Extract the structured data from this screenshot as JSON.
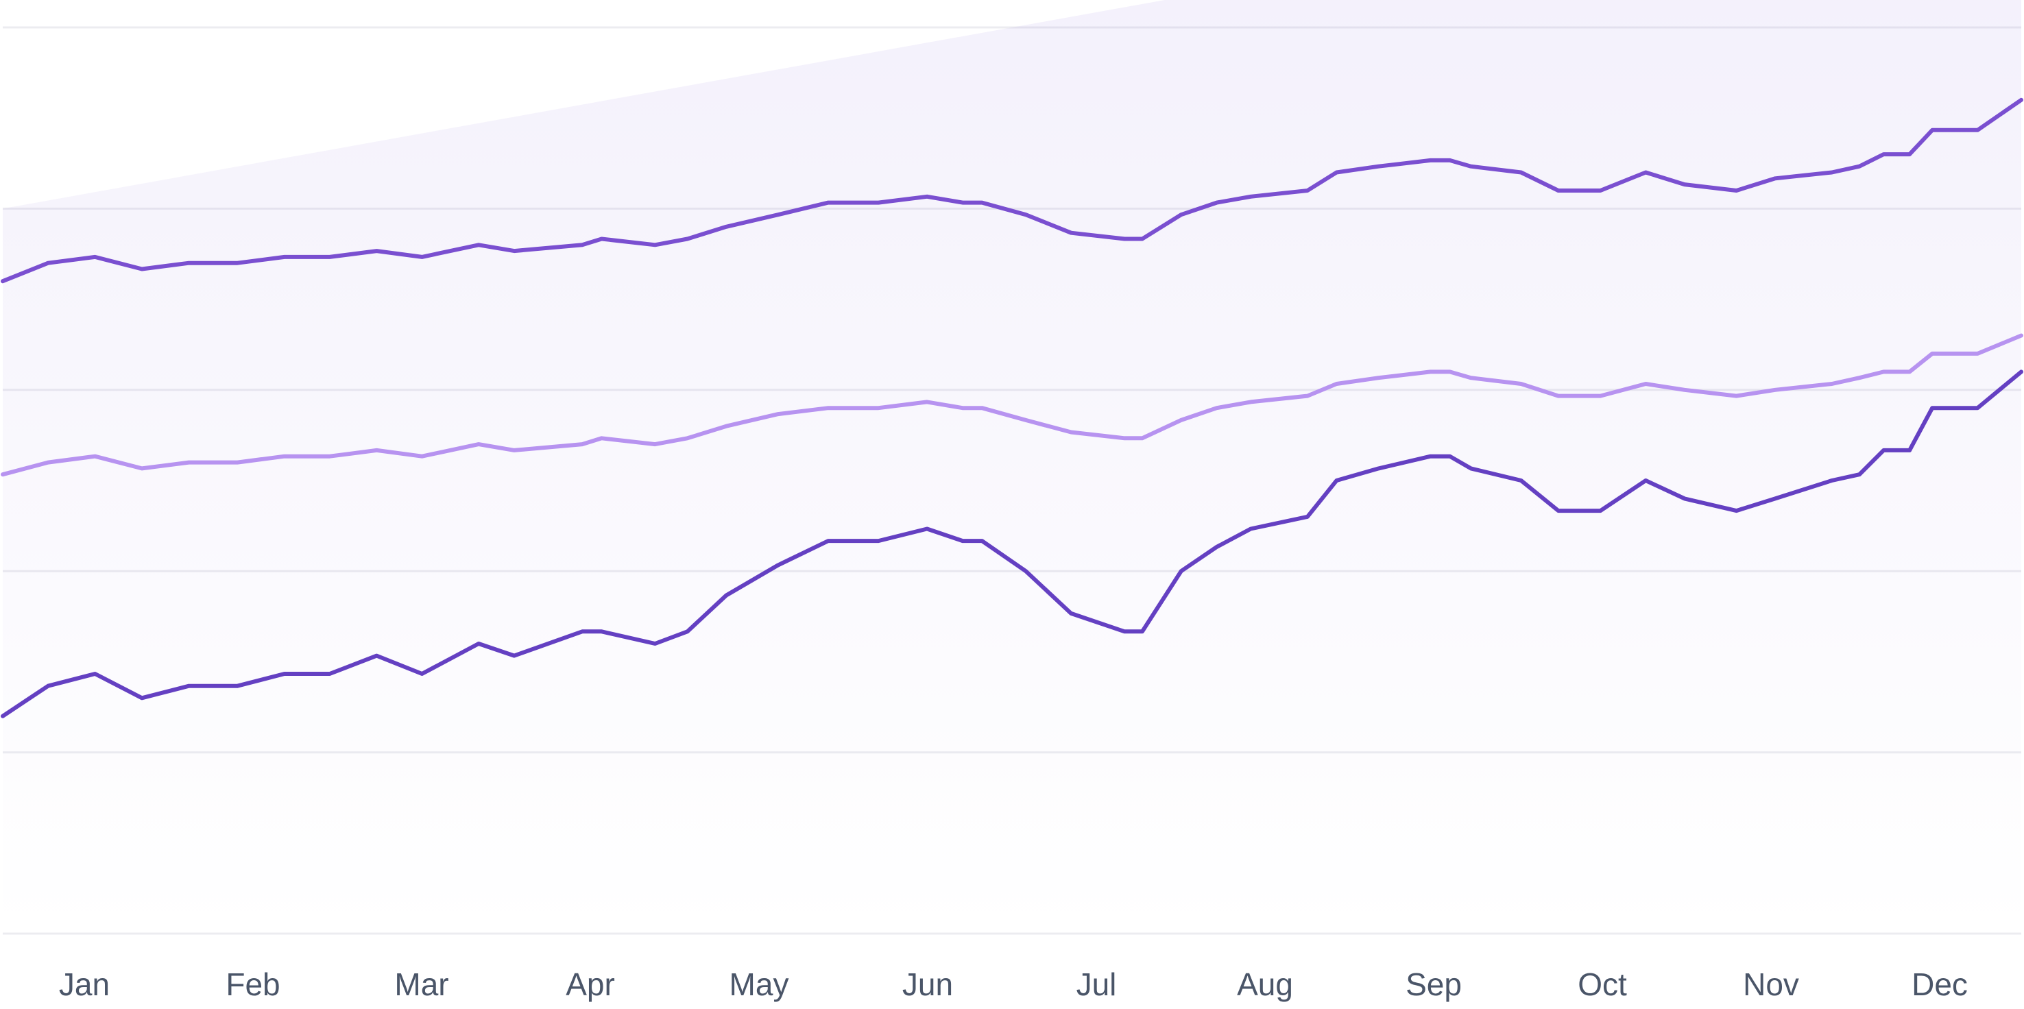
{
  "chart_data": {
    "type": "line",
    "title": "",
    "xlabel": "",
    "ylabel": "",
    "x_tick_labels": [
      "Jan",
      "Feb",
      "Mar",
      "Apr",
      "May",
      "Jun",
      "Jul",
      "Aug",
      "Sep",
      "Oct",
      "Nov",
      "Dec"
    ],
    "grid": "horizontal",
    "legend": "none",
    "band": {
      "start": 120,
      "end": 180,
      "color": "#7c5cd6"
    },
    "series": [
      {
        "color": "#7a4fd0",
        "points": [
          [
            0.0,
            108
          ],
          [
            0.28,
            111
          ],
          [
            0.57,
            112
          ],
          [
            0.86,
            110
          ],
          [
            1.15,
            111
          ],
          [
            1.45,
            111
          ],
          [
            1.74,
            112
          ],
          [
            2.02,
            112
          ],
          [
            2.31,
            113
          ],
          [
            2.59,
            112
          ],
          [
            2.94,
            114
          ],
          [
            3.16,
            113
          ],
          [
            3.58,
            114
          ],
          [
            3.7,
            115
          ],
          [
            4.03,
            114
          ],
          [
            4.23,
            115
          ],
          [
            4.47,
            117
          ],
          [
            4.79,
            119
          ],
          [
            5.1,
            121
          ],
          [
            5.41,
            121
          ],
          [
            5.71,
            122
          ],
          [
            5.93,
            121
          ],
          [
            6.05,
            121
          ],
          [
            6.32,
            119
          ],
          [
            6.6,
            116
          ],
          [
            6.93,
            115
          ],
          [
            7.04,
            115
          ],
          [
            7.28,
            119
          ],
          [
            7.5,
            121
          ],
          [
            7.71,
            122
          ],
          [
            8.06,
            123
          ],
          [
            8.24,
            126
          ],
          [
            8.5,
            127
          ],
          [
            8.82,
            128
          ],
          [
            8.94,
            128
          ],
          [
            9.07,
            127
          ],
          [
            9.38,
            126
          ],
          [
            9.61,
            123
          ],
          [
            9.87,
            123
          ],
          [
            10.15,
            126
          ],
          [
            10.39,
            124
          ],
          [
            10.71,
            123
          ],
          [
            10.95,
            125
          ],
          [
            11.3,
            126
          ],
          [
            11.47,
            127
          ],
          [
            11.62,
            129
          ],
          [
            11.78,
            129
          ],
          [
            11.92,
            133
          ],
          [
            12.2,
            133
          ],
          [
            12.47,
            138
          ]
        ]
      },
      {
        "color": "#b793f0",
        "points": [
          [
            0.0,
            76
          ],
          [
            0.28,
            78
          ],
          [
            0.57,
            79
          ],
          [
            0.86,
            77
          ],
          [
            1.15,
            78
          ],
          [
            1.45,
            78
          ],
          [
            1.74,
            79
          ],
          [
            2.02,
            79
          ],
          [
            2.31,
            80
          ],
          [
            2.59,
            79
          ],
          [
            2.94,
            81
          ],
          [
            3.16,
            80
          ],
          [
            3.58,
            81
          ],
          [
            3.7,
            82
          ],
          [
            4.03,
            81
          ],
          [
            4.23,
            82
          ],
          [
            4.47,
            84
          ],
          [
            4.79,
            86
          ],
          [
            5.1,
            87
          ],
          [
            5.41,
            87
          ],
          [
            5.71,
            88
          ],
          [
            5.93,
            87
          ],
          [
            6.05,
            87
          ],
          [
            6.32,
            85
          ],
          [
            6.6,
            83
          ],
          [
            6.93,
            82
          ],
          [
            7.04,
            82
          ],
          [
            7.28,
            85
          ],
          [
            7.5,
            87
          ],
          [
            7.71,
            88
          ],
          [
            8.06,
            89
          ],
          [
            8.24,
            91
          ],
          [
            8.5,
            92
          ],
          [
            8.82,
            93
          ],
          [
            8.94,
            93
          ],
          [
            9.07,
            92
          ],
          [
            9.38,
            91
          ],
          [
            9.61,
            89
          ],
          [
            9.87,
            89
          ],
          [
            10.15,
            91
          ],
          [
            10.39,
            90
          ],
          [
            10.71,
            89
          ],
          [
            10.95,
            90
          ],
          [
            11.3,
            91
          ],
          [
            11.47,
            92
          ],
          [
            11.62,
            93
          ],
          [
            11.78,
            93
          ],
          [
            11.92,
            96
          ],
          [
            12.2,
            96
          ],
          [
            12.47,
            99
          ]
        ]
      },
      {
        "color": "#6440c2",
        "points": [
          [
            0.0,
            36
          ],
          [
            0.28,
            41
          ],
          [
            0.57,
            43
          ],
          [
            0.86,
            39
          ],
          [
            1.15,
            41
          ],
          [
            1.45,
            41
          ],
          [
            1.74,
            43
          ],
          [
            2.02,
            43
          ],
          [
            2.31,
            46
          ],
          [
            2.59,
            43
          ],
          [
            2.94,
            48
          ],
          [
            3.16,
            46
          ],
          [
            3.58,
            50
          ],
          [
            3.7,
            50
          ],
          [
            4.03,
            48
          ],
          [
            4.23,
            50
          ],
          [
            4.47,
            56
          ],
          [
            4.79,
            61
          ],
          [
            5.1,
            65
          ],
          [
            5.41,
            65
          ],
          [
            5.71,
            67
          ],
          [
            5.93,
            65
          ],
          [
            6.05,
            65
          ],
          [
            6.32,
            60
          ],
          [
            6.6,
            53
          ],
          [
            6.93,
            50
          ],
          [
            7.04,
            50
          ],
          [
            7.28,
            60
          ],
          [
            7.5,
            64
          ],
          [
            7.71,
            67
          ],
          [
            8.06,
            69
          ],
          [
            8.24,
            75
          ],
          [
            8.5,
            77
          ],
          [
            8.82,
            79
          ],
          [
            8.94,
            79
          ],
          [
            9.07,
            77
          ],
          [
            9.38,
            75
          ],
          [
            9.61,
            70
          ],
          [
            9.87,
            70
          ],
          [
            10.15,
            75
          ],
          [
            10.39,
            72
          ],
          [
            10.71,
            70
          ],
          [
            10.95,
            72
          ],
          [
            11.3,
            75
          ],
          [
            11.47,
            76
          ],
          [
            11.62,
            80
          ],
          [
            11.78,
            80
          ],
          [
            11.92,
            87
          ],
          [
            12.2,
            87
          ],
          [
            12.47,
            93
          ]
        ]
      }
    ],
    "xlim": [
      0,
      12.47
    ],
    "ylim": [
      0,
      150
    ],
    "y_gridlines": [
      0,
      30,
      60,
      90,
      120,
      150
    ]
  }
}
